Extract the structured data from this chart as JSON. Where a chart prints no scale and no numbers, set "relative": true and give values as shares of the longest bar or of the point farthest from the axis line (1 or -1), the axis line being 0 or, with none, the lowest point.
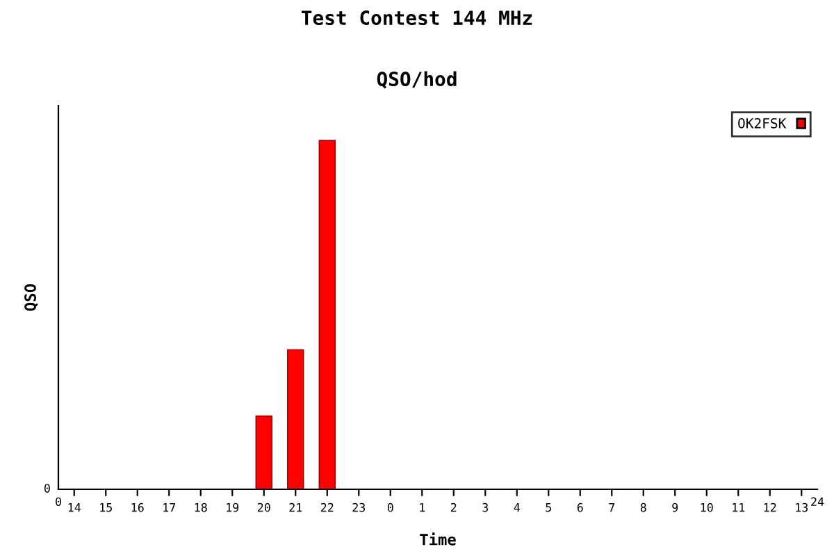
{
  "chart_data": {
    "type": "bar",
    "title": "Test Contest 144 MHz",
    "subtitle": "QSO/hod",
    "xlabel": "Time",
    "ylabel": "QSO",
    "relative": true,
    "categories": [
      "14",
      "15",
      "16",
      "17",
      "18",
      "19",
      "20",
      "21",
      "22",
      "23",
      "0",
      "1",
      "2",
      "3",
      "4",
      "5",
      "6",
      "7",
      "8",
      "9",
      "10",
      "11",
      "12",
      "13"
    ],
    "series": [
      {
        "name": "OK2FSK",
        "color": "#ff0000",
        "values": [
          null,
          null,
          null,
          null,
          null,
          null,
          0.21,
          0.4,
          1.0,
          null,
          null,
          null,
          null,
          null,
          null,
          null,
          null,
          null,
          null,
          null,
          null,
          null,
          null,
          null
        ]
      }
    ],
    "annotations": [
      "0",
      "0",
      "24"
    ],
    "legend": "top right"
  }
}
